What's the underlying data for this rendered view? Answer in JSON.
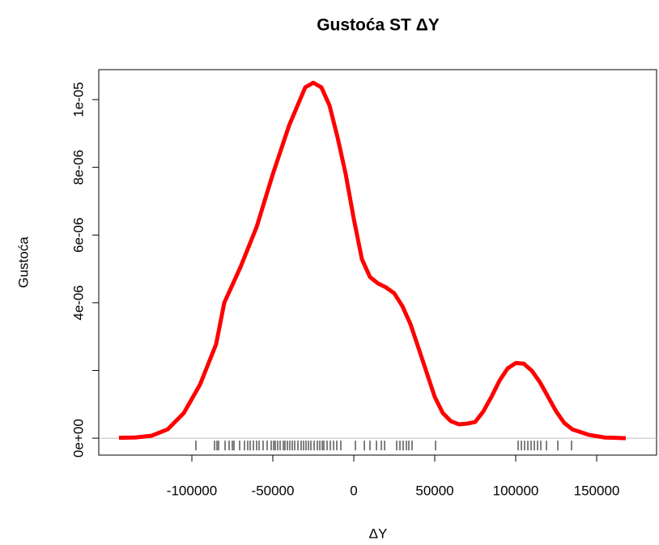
{
  "chart_data": {
    "type": "line",
    "title": "Gustoća ST ΔY",
    "x_label": "ΔY",
    "y_label": "Gustoća",
    "xlim": [
      -157500,
      187500
    ],
    "ylim": [
      -5e-07,
      1.0885e-05
    ],
    "xticks": [
      -100000,
      -50000,
      0,
      50000,
      100000,
      150000
    ],
    "yticks": [
      {
        "value": 0,
        "label": "0e+00"
      },
      {
        "value": 2e-06,
        "label": null
      },
      {
        "value": 4e-06,
        "label": "4e-06"
      },
      {
        "value": 6e-06,
        "label": "6e-06"
      },
      {
        "value": 8e-06,
        "label": "8e-06"
      },
      {
        "value": 1e-05,
        "label": "1e-05"
      }
    ],
    "series": [
      {
        "name": "density",
        "color": "#ff0000",
        "x": [
          -145000,
          -135000,
          -125000,
          -115000,
          -105000,
          -95000,
          -85000,
          -80000,
          -70000,
          -60000,
          -50000,
          -40000,
          -30000,
          -25000,
          -20000,
          -15000,
          -10000,
          -5000,
          0,
          5000,
          10000,
          15000,
          20000,
          25000,
          30000,
          35000,
          40000,
          45000,
          50000,
          55000,
          60000,
          65000,
          70000,
          75000,
          80000,
          85000,
          90000,
          95000,
          100000,
          105000,
          110000,
          115000,
          120000,
          125000,
          130000,
          135000,
          145000,
          155000,
          168000
        ],
        "values": [
          1e-08,
          2e-08,
          7e-08,
          2.6e-07,
          7.4e-07,
          1.58e-06,
          2.78e-06,
          4e-06,
          5.05e-06,
          6.24e-06,
          7.8e-06,
          9.23e-06,
          1.036e-05,
          1.05e-05,
          1.036e-05,
          9.83e-06,
          8.88e-06,
          7.8e-06,
          6.48e-06,
          5.29e-06,
          4.76e-06,
          4.57e-06,
          4.45e-06,
          4.28e-06,
          3.9e-06,
          3.37e-06,
          2.66e-06,
          1.94e-06,
          1.22e-06,
          7.4e-07,
          5e-07,
          4.1e-07,
          4.3e-07,
          4.8e-07,
          7.9e-07,
          1.22e-06,
          1.7e-06,
          2.06e-06,
          2.22e-06,
          2.2e-06,
          1.99e-06,
          1.65e-06,
          1.22e-06,
          7.9e-07,
          4.5e-07,
          2.6e-07,
          1e-07,
          2e-08,
          0
        ]
      }
    ],
    "rug": [
      -97500,
      -86000,
      -84500,
      -83500,
      -79500,
      -77000,
      -75000,
      -74000,
      -70500,
      -67500,
      -65500,
      -64000,
      -62000,
      -60000,
      -58500,
      -56000,
      -53500,
      -51000,
      -49500,
      -48500,
      -47000,
      -45500,
      -43500,
      -42500,
      -41000,
      -39500,
      -38000,
      -36500,
      -34500,
      -32500,
      -31000,
      -29500,
      -28000,
      -26500,
      -24500,
      -22500,
      -21000,
      -19500,
      -18500,
      -16500,
      -14500,
      -12500,
      -10500,
      -8000,
      1000,
      6500,
      10000,
      14000,
      17000,
      19000,
      26500,
      28500,
      30500,
      32500,
      34000,
      36000,
      50500,
      101500,
      103500,
      105500,
      107500,
      109500,
      111500,
      113500,
      115500,
      119000,
      126000,
      134500
    ]
  }
}
